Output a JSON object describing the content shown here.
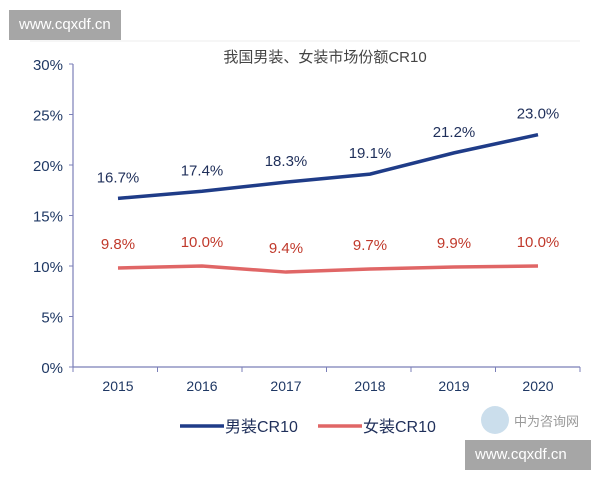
{
  "watermark_top": "www.cqxdf.cn",
  "watermark_bottom": "www.cqxdf.cn",
  "logo_text": "中为咨询网",
  "chart_data": {
    "type": "line",
    "title": "我国男装、女装市场份额CR10",
    "categories": [
      "2015",
      "2016",
      "2017",
      "2018",
      "2019",
      "2020"
    ],
    "series": [
      {
        "name": "男装CR10",
        "values": [
          16.7,
          17.4,
          18.3,
          19.1,
          21.2,
          23.0
        ],
        "labels": [
          "16.7%",
          "17.4%",
          "18.3%",
          "19.1%",
          "21.2%",
          "23.0%"
        ],
        "color": "#1f3c88"
      },
      {
        "name": "女装CR10",
        "values": [
          9.8,
          10.0,
          9.4,
          9.7,
          9.9,
          10.0
        ],
        "labels": [
          "9.8%",
          "10.0%",
          "9.4%",
          "9.7%",
          "9.9%",
          "10.0%"
        ],
        "color": "#e06666"
      }
    ],
    "yticks": [
      "0%",
      "5%",
      "10%",
      "15%",
      "20%",
      "25%",
      "30%"
    ],
    "ylim": [
      0,
      30
    ],
    "grid": false,
    "legend": "bottom",
    "axis_color": "#7b7fb8",
    "tick_label_color": "#1f3864",
    "label_colors": {
      "male": "#1f2f5a",
      "female": "#c0392b"
    }
  }
}
